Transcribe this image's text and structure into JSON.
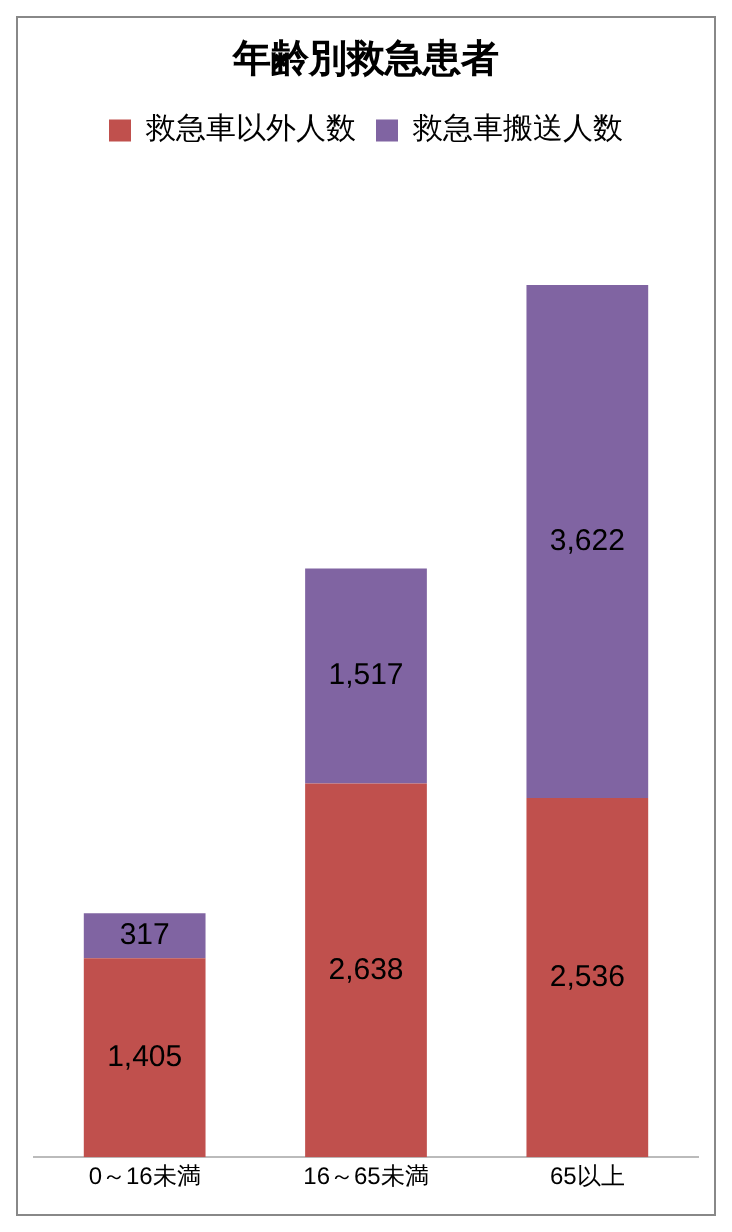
{
  "chart_data": {
    "type": "bar",
    "title": "年齢別救急患者",
    "categories": [
      "0～16未満",
      "16～65未満",
      "65以上"
    ],
    "stacked": true,
    "legend": "top",
    "grid": false,
    "series": [
      {
        "name": "救急車以外人数",
        "color": "#c0504d",
        "values": [
          1405,
          2638,
          2536
        ],
        "value_labels": [
          "1,405",
          "2,638",
          "2,536"
        ]
      },
      {
        "name": "救急車搬送人数",
        "color": "#8064a2",
        "values": [
          317,
          1517,
          3622
        ],
        "value_labels": [
          "317",
          "1,517",
          "3,622"
        ]
      }
    ]
  }
}
